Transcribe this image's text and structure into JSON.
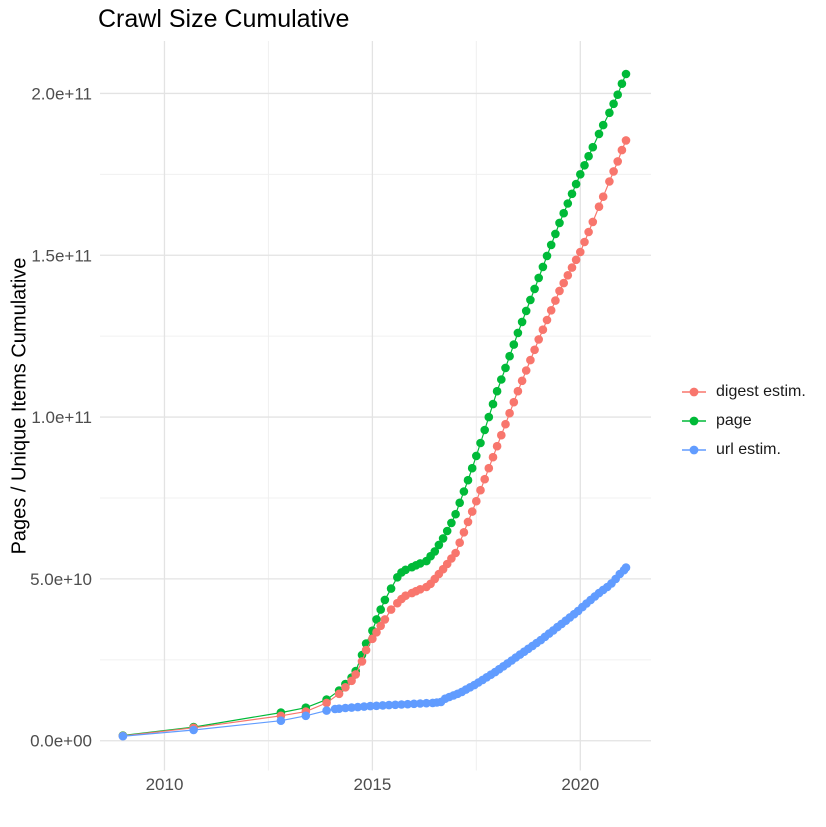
{
  "chart_data": {
    "type": "scatter",
    "title": "Crawl Size Cumulative",
    "xlabel": "",
    "ylabel": "Pages / Unique Items Cumulative",
    "value_unit_multiplier": 1000000000,
    "grid": true,
    "legend_position": "right",
    "xlim": [
      2008.45,
      2021.7
    ],
    "ylim_e9": [
      -9.2,
      216.2
    ],
    "x_ticks": [
      {
        "value": 2010,
        "label": "2010"
      },
      {
        "value": 2015,
        "label": "2015"
      },
      {
        "value": 2020,
        "label": "2020"
      }
    ],
    "x_minor": [
      2012.5,
      2017.5
    ],
    "y_ticks": [
      {
        "value": 0,
        "label": "0.0e+00"
      },
      {
        "value": 50,
        "label": "5.0e+10"
      },
      {
        "value": 100,
        "label": "1.0e+11"
      },
      {
        "value": 150,
        "label": "1.5e+11"
      },
      {
        "value": 200,
        "label": "2.0e+11"
      }
    ],
    "y_minor": [
      25,
      75,
      125,
      175
    ],
    "colors": {
      "grid_major": "#E3E3E3",
      "grid_minor": "#F0F0F0",
      "axis_text": "#4D4D4D",
      "title_text": "#000000",
      "legend_text": "#1A1A1A",
      "background": "#FFFFFF"
    },
    "series": [
      {
        "name": "digest estim.",
        "color": "#F8766D",
        "z": 2,
        "points": [
          [
            2009.0,
            1.5
          ],
          [
            2010.7,
            4.0
          ],
          [
            2012.8,
            7.7
          ],
          [
            2013.4,
            9.0
          ],
          [
            2013.9,
            11.7
          ],
          [
            2014.2,
            14.5
          ],
          [
            2014.35,
            16.5
          ],
          [
            2014.5,
            18.5
          ],
          [
            2014.6,
            20.5
          ],
          [
            2014.75,
            24.5
          ],
          [
            2014.85,
            28
          ],
          [
            2015.0,
            31.5
          ],
          [
            2015.1,
            33.5
          ],
          [
            2015.2,
            35.5
          ],
          [
            2015.3,
            37.5
          ],
          [
            2015.45,
            40.5
          ],
          [
            2015.6,
            42.5
          ],
          [
            2015.7,
            43.8
          ],
          [
            2015.8,
            44.8
          ],
          [
            2015.95,
            45.6
          ],
          [
            2016.05,
            46.2
          ],
          [
            2016.15,
            46.8
          ],
          [
            2016.3,
            47.5
          ],
          [
            2016.4,
            48.5
          ],
          [
            2016.5,
            50
          ],
          [
            2016.6,
            51.5
          ],
          [
            2016.7,
            53
          ],
          [
            2016.8,
            54.6
          ],
          [
            2016.9,
            56.3
          ],
          [
            2017.0,
            58
          ],
          [
            2017.1,
            61.2
          ],
          [
            2017.2,
            64.4
          ],
          [
            2017.3,
            67.6
          ],
          [
            2017.4,
            70.8
          ],
          [
            2017.5,
            74
          ],
          [
            2017.6,
            77.4
          ],
          [
            2017.7,
            80.8
          ],
          [
            2017.8,
            84.2
          ],
          [
            2017.9,
            87.6
          ],
          [
            2018.0,
            91
          ],
          [
            2018.1,
            94.4
          ],
          [
            2018.2,
            97.8
          ],
          [
            2018.3,
            101.2
          ],
          [
            2018.4,
            104.6
          ],
          [
            2018.5,
            108
          ],
          [
            2018.6,
            111.2
          ],
          [
            2018.7,
            114.4
          ],
          [
            2018.8,
            117.6
          ],
          [
            2018.9,
            120.8
          ],
          [
            2019.0,
            124
          ],
          [
            2019.1,
            127
          ],
          [
            2019.2,
            130
          ],
          [
            2019.3,
            133
          ],
          [
            2019.4,
            136
          ],
          [
            2019.5,
            139
          ],
          [
            2019.6,
            141.4
          ],
          [
            2019.7,
            143.8
          ],
          [
            2019.8,
            146.2
          ],
          [
            2019.9,
            148.6
          ],
          [
            2020.0,
            151
          ],
          [
            2020.1,
            154.1
          ],
          [
            2020.2,
            157.2
          ],
          [
            2020.3,
            160.3
          ],
          [
            2020.45,
            165
          ],
          [
            2020.55,
            168.1
          ],
          [
            2020.7,
            172.8
          ],
          [
            2020.8,
            175.9
          ],
          [
            2020.9,
            179
          ],
          [
            2021.0,
            182.5
          ],
          [
            2021.1,
            185.5
          ]
        ]
      },
      {
        "name": "page",
        "color": "#00BA38",
        "z": 1,
        "points": [
          [
            2009.0,
            1.6
          ],
          [
            2010.7,
            4.2
          ],
          [
            2012.8,
            8.7
          ],
          [
            2013.4,
            10.2
          ],
          [
            2013.9,
            12.7
          ],
          [
            2014.2,
            15.5
          ],
          [
            2014.35,
            17.5
          ],
          [
            2014.5,
            19.5
          ],
          [
            2014.6,
            21.5
          ],
          [
            2014.75,
            26.5
          ],
          [
            2014.85,
            30
          ],
          [
            2015.0,
            34
          ],
          [
            2015.1,
            37.5
          ],
          [
            2015.2,
            40.5
          ],
          [
            2015.3,
            43.5
          ],
          [
            2015.45,
            47
          ],
          [
            2015.6,
            50.5
          ],
          [
            2015.7,
            52
          ],
          [
            2015.8,
            52.8
          ],
          [
            2015.95,
            53.6
          ],
          [
            2016.05,
            54.2
          ],
          [
            2016.15,
            54.8
          ],
          [
            2016.3,
            55.5
          ],
          [
            2016.4,
            57
          ],
          [
            2016.5,
            58.5
          ],
          [
            2016.6,
            60.5
          ],
          [
            2016.7,
            62.5
          ],
          [
            2016.8,
            64.8
          ],
          [
            2016.9,
            67.3
          ],
          [
            2017.0,
            70
          ],
          [
            2017.1,
            73.5
          ],
          [
            2017.2,
            77
          ],
          [
            2017.3,
            80.5
          ],
          [
            2017.4,
            84.2
          ],
          [
            2017.5,
            88
          ],
          [
            2017.6,
            92
          ],
          [
            2017.7,
            96
          ],
          [
            2017.8,
            100
          ],
          [
            2017.9,
            104
          ],
          [
            2018.0,
            108
          ],
          [
            2018.1,
            111.6
          ],
          [
            2018.2,
            115.2
          ],
          [
            2018.3,
            118.8
          ],
          [
            2018.4,
            122.4
          ],
          [
            2018.5,
            126
          ],
          [
            2018.6,
            129.4
          ],
          [
            2018.7,
            132.8
          ],
          [
            2018.8,
            136.2
          ],
          [
            2018.9,
            139.6
          ],
          [
            2019.0,
            143
          ],
          [
            2019.1,
            146.4
          ],
          [
            2019.2,
            149.8
          ],
          [
            2019.3,
            153.2
          ],
          [
            2019.4,
            156.6
          ],
          [
            2019.5,
            160
          ],
          [
            2019.6,
            163
          ],
          [
            2019.7,
            166
          ],
          [
            2019.8,
            169
          ],
          [
            2019.9,
            172
          ],
          [
            2020.0,
            175
          ],
          [
            2020.1,
            177.8
          ],
          [
            2020.2,
            180.6
          ],
          [
            2020.3,
            183.4
          ],
          [
            2020.45,
            187.5
          ],
          [
            2020.55,
            190.2
          ],
          [
            2020.7,
            194
          ],
          [
            2020.8,
            196.8
          ],
          [
            2020.9,
            199.6
          ],
          [
            2021.0,
            203
          ],
          [
            2021.1,
            206
          ]
        ]
      },
      {
        "name": "url estim.",
        "color": "#619CFF",
        "z": 3,
        "points": [
          [
            2009.0,
            1.4
          ],
          [
            2010.7,
            3.3
          ],
          [
            2012.8,
            6.2
          ],
          [
            2013.4,
            7.7
          ],
          [
            2013.9,
            9.3
          ],
          [
            2014.1,
            9.8
          ],
          [
            2014.2,
            9.9
          ],
          [
            2014.35,
            10.1
          ],
          [
            2014.5,
            10.25
          ],
          [
            2014.65,
            10.4
          ],
          [
            2014.8,
            10.55
          ],
          [
            2014.95,
            10.7
          ],
          [
            2015.1,
            10.8
          ],
          [
            2015.25,
            10.9
          ],
          [
            2015.4,
            11.0
          ],
          [
            2015.55,
            11.1
          ],
          [
            2015.7,
            11.2
          ],
          [
            2015.85,
            11.3
          ],
          [
            2016.0,
            11.4
          ],
          [
            2016.15,
            11.5
          ],
          [
            2016.3,
            11.6
          ],
          [
            2016.45,
            11.7
          ],
          [
            2016.55,
            11.8
          ],
          [
            2016.65,
            12.0
          ],
          [
            2016.75,
            13.0
          ],
          [
            2016.85,
            13.5
          ],
          [
            2016.95,
            14.0
          ],
          [
            2017.05,
            14.5
          ],
          [
            2017.15,
            15.1
          ],
          [
            2017.25,
            15.8
          ],
          [
            2017.35,
            16.5
          ],
          [
            2017.45,
            17.2
          ],
          [
            2017.55,
            18.0
          ],
          [
            2017.65,
            18.8
          ],
          [
            2017.75,
            19.6
          ],
          [
            2017.85,
            20.4
          ],
          [
            2017.95,
            21.2
          ],
          [
            2018.05,
            22.1
          ],
          [
            2018.15,
            23.0
          ],
          [
            2018.25,
            23.9
          ],
          [
            2018.35,
            24.8
          ],
          [
            2018.45,
            25.7
          ],
          [
            2018.55,
            26.6
          ],
          [
            2018.65,
            27.5
          ],
          [
            2018.75,
            28.4
          ],
          [
            2018.85,
            29.3
          ],
          [
            2018.95,
            30.2
          ],
          [
            2019.05,
            31.1
          ],
          [
            2019.15,
            32.1
          ],
          [
            2019.25,
            33.1
          ],
          [
            2019.35,
            34.1
          ],
          [
            2019.45,
            35.1
          ],
          [
            2019.55,
            36.1
          ],
          [
            2019.65,
            37.1
          ],
          [
            2019.75,
            38.1
          ],
          [
            2019.85,
            39.1
          ],
          [
            2019.95,
            40.1
          ],
          [
            2020.05,
            41.3
          ],
          [
            2020.15,
            42.4
          ],
          [
            2020.25,
            43.5
          ],
          [
            2020.35,
            44.6
          ],
          [
            2020.45,
            45.6
          ],
          [
            2020.55,
            46.6
          ],
          [
            2020.65,
            47.5
          ],
          [
            2020.75,
            48.6
          ],
          [
            2020.85,
            50.0
          ],
          [
            2020.95,
            51.5
          ],
          [
            2021.05,
            52.7
          ],
          [
            2021.1,
            53.5
          ]
        ]
      }
    ]
  }
}
